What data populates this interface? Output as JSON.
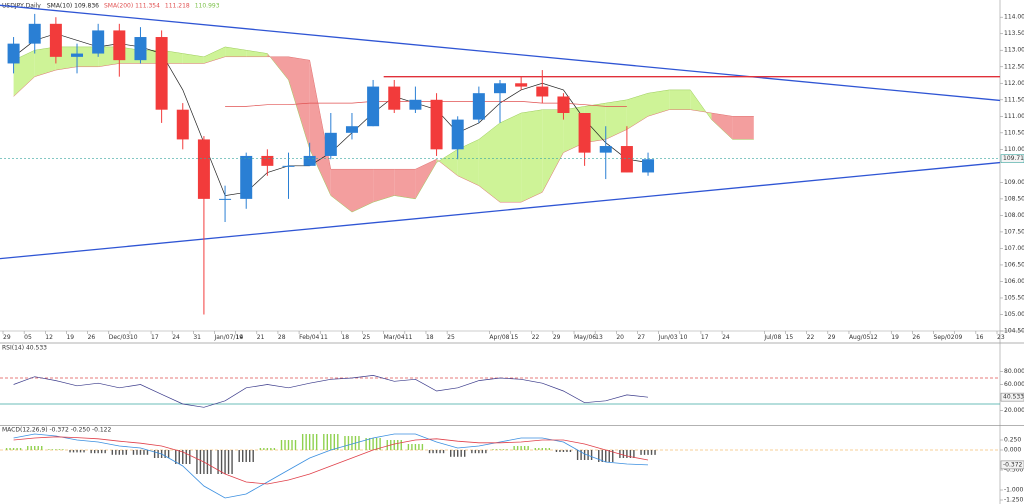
{
  "chart_data": [
    {
      "type": "candlestick",
      "title": "USDJPY,Daily",
      "indicators": [
        {
          "label": "SMA(10) 109.836",
          "color": "#222222"
        },
        {
          "label": "SMA(200) 111.354",
          "color": "#e05050"
        },
        {
          "label": "111.218",
          "color": "#e05050"
        },
        {
          "label": "110.993",
          "color": "#7cc04a"
        }
      ],
      "categories": [
        "29",
        "05",
        "12",
        "19",
        "26",
        "Dec/03",
        "10",
        "17",
        "24",
        "31",
        "Jan/07/19",
        "14",
        "21",
        "28",
        "Feb/04",
        "11",
        "18",
        "25",
        "Mar/04",
        "11",
        "18",
        "25",
        null,
        "Apr/08",
        "15",
        "22",
        "29",
        "May/06",
        "13",
        "20",
        "27",
        "Jun/03",
        "10",
        "17",
        "24",
        null,
        "Jul/08",
        "15",
        "22",
        "29",
        "Aug/05",
        "12",
        "19",
        "26",
        "Sep/02",
        "09",
        "16",
        "23"
      ],
      "open": [
        112.6,
        113.2,
        113.8,
        112.8,
        112.9,
        113.6,
        112.7,
        113.4,
        111.2,
        110.3,
        108.5,
        108.5,
        109.8,
        109.5,
        109.5,
        109.8,
        110.5,
        110.7,
        111.9,
        111.2,
        111.5,
        110.0,
        110.9,
        111.7,
        112.0,
        111.9,
        111.6,
        111.1,
        109.9,
        110.1,
        109.3,
        null,
        null,
        null,
        null,
        null,
        null,
        null,
        null,
        null,
        null,
        null,
        null,
        null,
        null,
        null,
        null,
        null
      ],
      "high": [
        113.4,
        114.1,
        114.0,
        113.2,
        113.8,
        113.8,
        113.7,
        113.6,
        111.4,
        110.4,
        108.9,
        109.9,
        110.0,
        109.9,
        110.2,
        111.1,
        111.1,
        112.1,
        112.1,
        111.9,
        111.7,
        111.0,
        111.9,
        112.1,
        112.2,
        112.4,
        111.7,
        111.1,
        110.7,
        110.7,
        109.9,
        null,
        null,
        null,
        null,
        null,
        null,
        null,
        null,
        null,
        null,
        null,
        null,
        null,
        null,
        null,
        null,
        null
      ],
      "low": [
        112.3,
        112.9,
        112.6,
        112.3,
        112.8,
        112.2,
        112.6,
        110.8,
        110.0,
        105.0,
        107.8,
        108.2,
        109.2,
        108.5,
        109.5,
        109.7,
        110.3,
        110.7,
        111.1,
        111.1,
        109.8,
        109.7,
        110.8,
        110.8,
        111.8,
        111.4,
        110.9,
        109.5,
        109.1,
        109.3,
        109.2,
        null,
        null,
        null,
        null,
        null,
        null,
        null,
        null,
        null,
        null,
        null,
        null,
        null,
        null,
        null,
        null,
        null
      ],
      "close": [
        113.2,
        113.8,
        112.8,
        112.9,
        113.6,
        112.7,
        113.4,
        111.2,
        110.3,
        108.5,
        108.5,
        109.8,
        109.5,
        109.5,
        109.8,
        110.5,
        110.7,
        111.9,
        111.2,
        111.5,
        110.0,
        110.9,
        111.7,
        112.0,
        111.9,
        111.6,
        111.1,
        109.9,
        110.1,
        109.3,
        109.7,
        null,
        null,
        null,
        null,
        null,
        null,
        null,
        null,
        null,
        null,
        null,
        null,
        null,
        null,
        null,
        null,
        null
      ],
      "up_color": "#2a7fd4",
      "down_color": "#f23b3b",
      "cloud": {
        "span_a": [
          112.7,
          113.0,
          113.1,
          113.1,
          113.1,
          113.1,
          113.0,
          113.0,
          112.9,
          112.8,
          113.1,
          113.0,
          112.9,
          112.1,
          110.0,
          108.6,
          108.1,
          108.4,
          108.6,
          108.5,
          109.6,
          110.0,
          110.3,
          110.8,
          111.1,
          111.2,
          111.2,
          111.3,
          111.4,
          111.5,
          111.7,
          111.8,
          111.8,
          110.9,
          110.3,
          110.3,
          null,
          null,
          null,
          null,
          null,
          null,
          null,
          null,
          null,
          null,
          null,
          null
        ],
        "span_b": [
          111.6,
          112.2,
          112.4,
          112.5,
          112.5,
          112.6,
          112.6,
          112.6,
          112.6,
          112.6,
          112.8,
          112.8,
          112.8,
          112.8,
          112.7,
          109.4,
          109.4,
          109.4,
          109.4,
          109.4,
          109.7,
          109.2,
          108.9,
          108.4,
          108.4,
          108.7,
          109.9,
          110.2,
          110.3,
          110.6,
          111.0,
          111.2,
          111.2,
          111.1,
          111.0,
          111.0,
          null,
          null,
          null,
          null,
          null,
          null,
          null,
          null,
          null,
          null,
          null,
          null
        ],
        "up_color": "#c9f28c",
        "down_color": "#f29494"
      },
      "lines": [
        {
          "color": "#222222",
          "values": [
            112.8,
            113.3,
            113.5,
            113.3,
            113.1,
            113.2,
            113.1,
            112.9,
            111.8,
            110.2,
            108.6,
            108.7,
            109.3,
            109.5,
            109.5,
            109.9,
            110.5,
            111.1,
            111.6,
            111.4,
            111.2,
            110.5,
            110.8,
            111.4,
            111.8,
            112.0,
            111.8,
            110.9,
            110.2,
            109.7,
            109.6,
            null,
            null,
            null,
            null,
            null,
            null,
            null,
            null,
            null,
            null,
            null,
            null,
            null,
            null,
            null,
            null,
            null
          ]
        },
        {
          "color": "#e05050",
          "values": [
            null,
            null,
            null,
            null,
            null,
            null,
            null,
            null,
            null,
            null,
            111.3,
            111.3,
            111.35,
            111.35,
            111.4,
            111.4,
            111.4,
            111.45,
            111.45,
            111.45,
            111.45,
            111.45,
            111.45,
            111.45,
            111.45,
            111.4,
            111.4,
            111.35,
            111.3,
            111.3,
            null,
            null,
            null,
            null,
            null,
            null,
            null,
            null,
            null,
            null,
            null,
            null,
            null,
            null,
            null,
            null,
            null,
            null
          ]
        }
      ],
      "trendlines": [
        {
          "color": "#2f55d4",
          "values": [
            114.36,
            111.48
          ]
        },
        {
          "color": "#2f55d4",
          "values": [
            106.69,
            109.6
          ]
        },
        {
          "color": "#e0303a",
          "values": [
            112.2,
            112.2
          ],
          "start": 18
        }
      ],
      "last": 109.718,
      "last_color": "#3aa6a0",
      "ylim": [
        104.5,
        114.4
      ],
      "yticks": [
        {
          "value": 114.0,
          "label": "114.000"
        },
        {
          "value": 113.5,
          "label": "113.500"
        },
        {
          "value": 113.0,
          "label": "113.000"
        },
        {
          "value": 112.5,
          "label": "112.500"
        },
        {
          "value": 112.0,
          "label": "112.000"
        },
        {
          "value": 111.5,
          "label": "111.500"
        },
        {
          "value": 111.0,
          "label": "111.000"
        },
        {
          "value": 110.5,
          "label": "110.500"
        },
        {
          "value": 110.0,
          "label": "110.000"
        },
        {
          "value": 109.0,
          "label": "109.000"
        },
        {
          "value": 108.5,
          "label": "108.500"
        },
        {
          "value": 108.0,
          "label": "108.000"
        },
        {
          "value": 107.5,
          "label": "107.500"
        },
        {
          "value": 107.0,
          "label": "107.000"
        },
        {
          "value": 106.5,
          "label": "106.500"
        },
        {
          "value": 106.0,
          "label": "106.000"
        },
        {
          "value": 105.5,
          "label": "105.500"
        },
        {
          "value": 105.0,
          "label": "105.000"
        },
        {
          "value": 104.5,
          "label": "104.500"
        }
      ]
    },
    {
      "type": "line",
      "title": "RSI(14) 40.533",
      "series": [
        {
          "color": "#3a3a8a",
          "values": [
            60,
            72,
            66,
            58,
            62,
            55,
            60,
            45,
            30,
            25,
            35,
            55,
            60,
            55,
            62,
            68,
            70,
            74,
            65,
            68,
            50,
            55,
            66,
            70,
            68,
            62,
            50,
            32,
            35,
            44,
            40.533
          ]
        }
      ],
      "levels": [
        {
          "value": 70,
          "color": "#e05050"
        },
        {
          "value": 30,
          "color": "#3aa6a0"
        }
      ],
      "last": 40.533,
      "ylim": [
        0,
        100
      ],
      "yticks": [
        {
          "value": 80,
          "label": "80.000"
        },
        {
          "value": 60,
          "label": "60.000"
        },
        {
          "value": 20,
          "label": "20.000"
        }
      ]
    },
    {
      "type": "macd",
      "title": "MACD(12,26,9) -0.372 -0.250 -0.122",
      "series": [
        {
          "kind": "bar",
          "color": "#8fd14f",
          "neg_color": "#555555",
          "values": [
            0.05,
            0.1,
            0.02,
            -0.06,
            -0.08,
            -0.12,
            -0.12,
            -0.2,
            -0.35,
            -0.6,
            -0.6,
            -0.3,
            0.05,
            0.25,
            0.4,
            0.4,
            0.35,
            0.3,
            0.25,
            0.15,
            -0.08,
            -0.17,
            -0.08,
            0.02,
            0.1,
            0.05,
            -0.05,
            -0.25,
            -0.3,
            -0.2,
            -0.122
          ]
        },
        {
          "kind": "line",
          "color": "#3b8fe0",
          "values": [
            0.3,
            0.4,
            0.35,
            0.25,
            0.2,
            0.1,
            0.05,
            -0.1,
            -0.4,
            -0.9,
            -1.2,
            -1.1,
            -0.8,
            -0.5,
            -0.2,
            0.0,
            0.15,
            0.3,
            0.4,
            0.4,
            0.2,
            0.05,
            0.1,
            0.2,
            0.3,
            0.3,
            0.2,
            -0.1,
            -0.3,
            -0.35,
            -0.372
          ]
        },
        {
          "kind": "line",
          "color": "#e0404a",
          "values": [
            0.25,
            0.3,
            0.33,
            0.31,
            0.28,
            0.22,
            0.17,
            0.1,
            -0.05,
            -0.3,
            -0.6,
            -0.8,
            -0.85,
            -0.75,
            -0.6,
            -0.4,
            -0.2,
            0.0,
            0.15,
            0.25,
            0.28,
            0.22,
            0.18,
            0.18,
            0.2,
            0.25,
            0.25,
            0.15,
            0.0,
            -0.15,
            -0.25
          ]
        }
      ],
      "zero_color": "#f0a030",
      "last": -0.372,
      "ylim": [
        -1.325,
        0.55
      ],
      "yticks": [
        {
          "value": 0.25,
          "label": "0.250"
        },
        {
          "value": 0,
          "label": "0.000"
        },
        {
          "value": -0.5,
          "label": "-0.500"
        },
        {
          "value": -1,
          "label": "-1.000"
        },
        {
          "value": -1.25,
          "label": "-1.250"
        }
      ]
    }
  ]
}
